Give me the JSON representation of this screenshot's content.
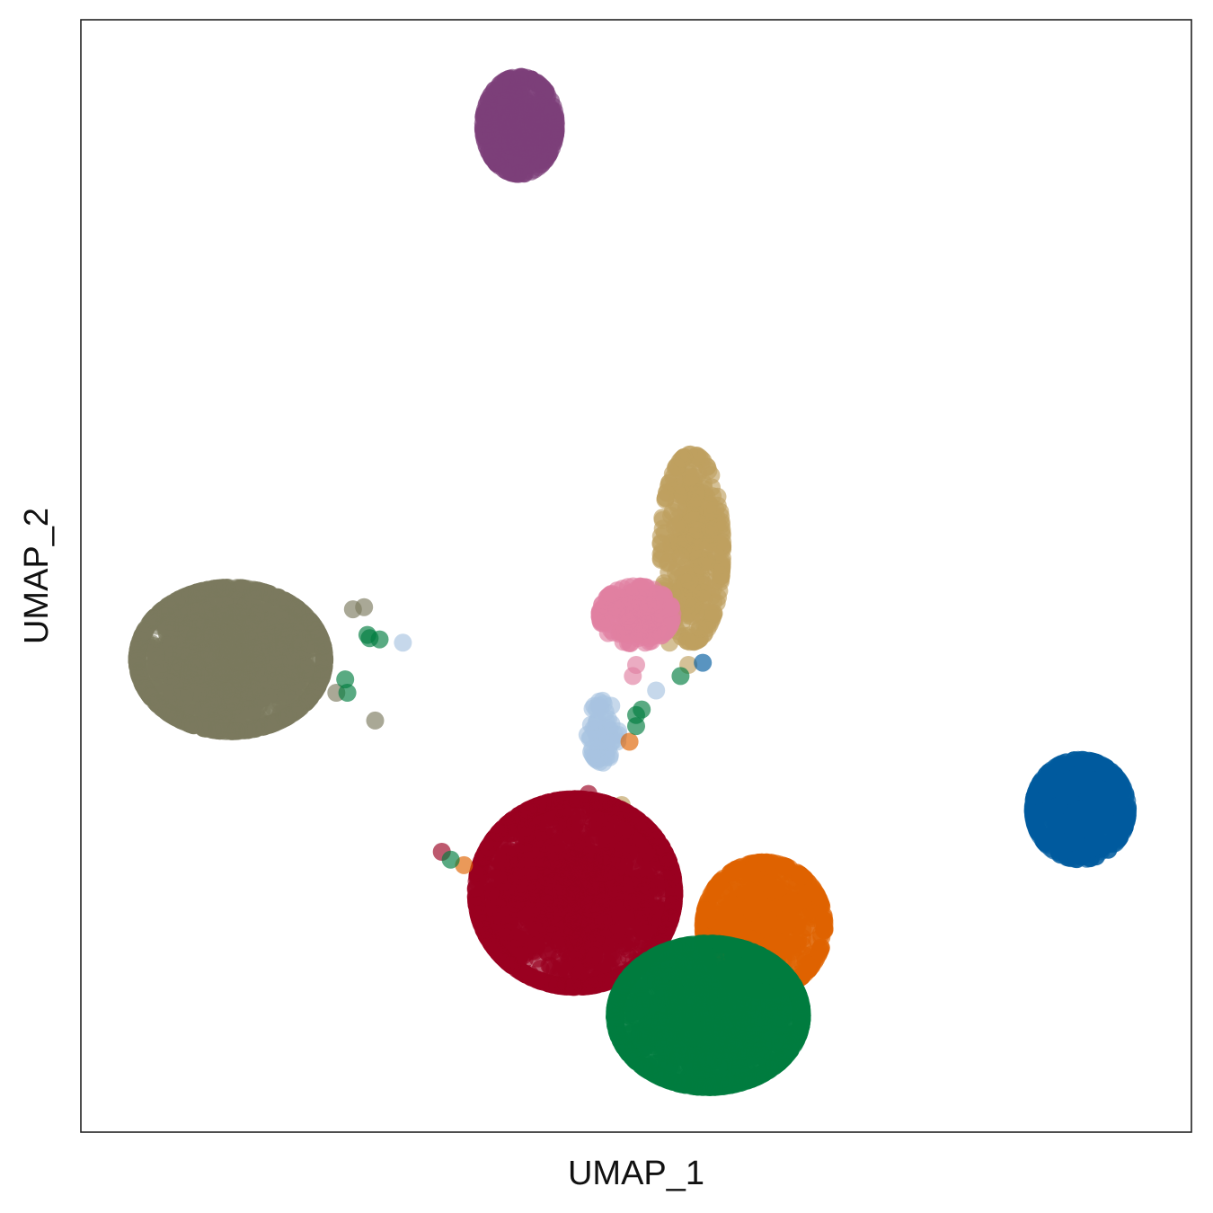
{
  "chart_data": {
    "type": "scatter",
    "xlabel": "UMAP_1",
    "ylabel": "UMAP_2",
    "xlim": [
      0,
      1
    ],
    "ylim": [
      0,
      1
    ],
    "x_ticks": false,
    "y_ticks": false,
    "grid": false,
    "legend": "none",
    "marker_opacity": 0.65,
    "clusters": [
      {
        "color": "#7b7a5e",
        "points": 1500,
        "center": [
          0.135,
          0.425
        ],
        "spread": [
          0.085,
          0.065
        ],
        "stray_points": [
          [
            0.265,
            0.37
          ],
          [
            0.23,
            0.395
          ],
          [
            0.255,
            0.472
          ],
          [
            0.245,
            0.47
          ]
        ]
      },
      {
        "color": "#7d3f7a",
        "points": 420,
        "center": [
          0.395,
          0.905
        ],
        "spread": [
          0.033,
          0.044
        ]
      },
      {
        "color": "#bf9f60",
        "points": 330,
        "center": [
          0.55,
          0.525
        ],
        "spread": [
          0.028,
          0.085
        ],
        "stray_points": [
          [
            0.487,
            0.294
          ],
          [
            0.547,
            0.42
          ],
          [
            0.53,
            0.44
          ]
        ]
      },
      {
        "color": "#e07fa2",
        "points": 190,
        "center": [
          0.5,
          0.465
        ],
        "spread": [
          0.033,
          0.026
        ],
        "stray_points": [
          [
            0.497,
            0.41
          ],
          [
            0.5,
            0.42
          ]
        ]
      },
      {
        "color": "#a8c3e0",
        "points": 60,
        "center": [
          0.47,
          0.36
        ],
        "spread": [
          0.014,
          0.028
        ],
        "stray_points": [
          [
            0.29,
            0.44
          ],
          [
            0.518,
            0.397
          ]
        ]
      },
      {
        "color": "#9a0020",
        "points": 1700,
        "center": [
          0.445,
          0.215
        ],
        "spread": [
          0.09,
          0.085
        ],
        "stray_points": [
          [
            0.457,
            0.304
          ],
          [
            0.325,
            0.252
          ]
        ]
      },
      {
        "color": "#df6200",
        "points": 650,
        "center": [
          0.615,
          0.185
        ],
        "spread": [
          0.055,
          0.058
        ],
        "stray_points": [
          [
            0.494,
            0.351
          ],
          [
            0.345,
            0.24
          ]
        ]
      },
      {
        "color": "#007d3f",
        "points": 1500,
        "center": [
          0.565,
          0.105
        ],
        "spread": [
          0.085,
          0.065
        ],
        "stray_points": [
          [
            0.258,
            0.447
          ],
          [
            0.26,
            0.444
          ],
          [
            0.269,
            0.443
          ],
          [
            0.238,
            0.407
          ],
          [
            0.24,
            0.395
          ],
          [
            0.5,
            0.375
          ],
          [
            0.5,
            0.365
          ],
          [
            0.505,
            0.38
          ],
          [
            0.54,
            0.41
          ],
          [
            0.333,
            0.245
          ]
        ]
      },
      {
        "color": "#005a9e",
        "points": 520,
        "center": [
          0.9,
          0.29
        ],
        "spread": [
          0.043,
          0.045
        ],
        "stray_points": [
          [
            0.56,
            0.422
          ]
        ]
      }
    ]
  }
}
